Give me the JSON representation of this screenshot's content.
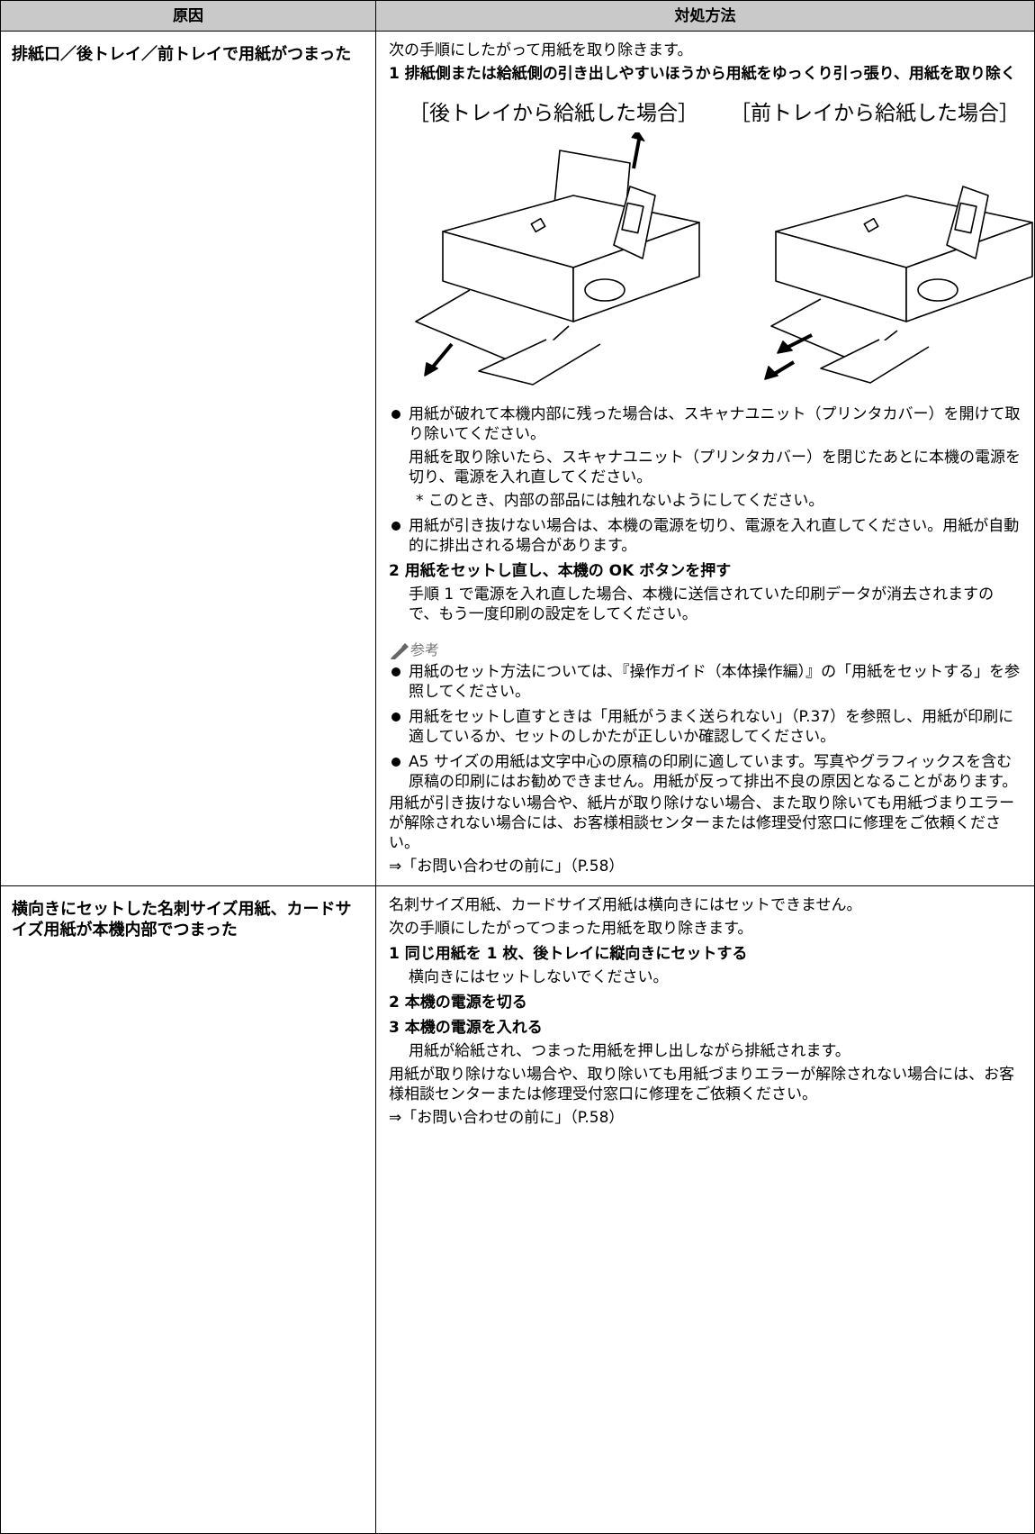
{
  "table": {
    "header": [
      "原因",
      "対処方法"
    ],
    "rows": [
      {
        "cause": "排紙口／後トレイ／前トレイで用紙がつまった",
        "intro": "次の手順にしたがって用紙を取り除きます。",
        "step1": "1 排紙側または給紙側の引き出しやすいほうから用紙をゆっくり引っ張り、用紙を取り除く",
        "captions": [
          "［後トレイから給紙した場合］",
          "［前トレイから給紙した場合］"
        ],
        "bullet1": "用紙が破れて本機内部に残った場合は、スキャナユニット（プリンタカバー）を開けて取り除いてください。",
        "bullet1_detail": "用紙を取り除いたら、スキャナユニット（プリンタカバー）を閉じたあとに本機の電源を切り、電源を入れ直してください。",
        "bullet1_note": "* このとき、内部の部品には触れないようにしてください。",
        "bullet2": "用紙が引き抜けない場合は、本機の電源を切り、電源を入れ直してください。用紙が自動的に排出される場合があります。",
        "step2": "2 用紙をセットし直し、本機の OK ボタンを押す",
        "step2_detail": "手順 1 で電源を入れ直した場合、本機に送信されていた印刷データが消去されますので、もう一度印刷の設定をしてください。",
        "note_title": "参考",
        "notes": [
          "用紙のセット方法については、『操作ガイド（本体操作編）』の「用紙をセットする」を参照してください。",
          "用紙をセットし直すときは「用紙がうまく送られない」（P.37）を参照し、用紙が印刷に適しているか、セットのしかたが正しいか確認してください。",
          "A5 サイズの用紙は文字中心の原稿の印刷に適しています。写真やグラフィックスを含む原稿の印刷にはお勧めできません。用紙が反って排出不良の原因となることがあります。"
        ],
        "closing": "用紙が引き抜けない場合や、紙片が取り除けない場合、また取り除いても用紙づまりエラーが解除されない場合には、お客様相談センターまたは修理受付窓口に修理をご依頼ください。",
        "reference": "⇒「お問い合わせの前に」（P.58）"
      },
      {
        "cause": "横向きにセットした名刺サイズ用紙、カードサイズ用紙が本機内部でつまった",
        "intro1": "名刺サイズ用紙、カードサイズ用紙は横向きにはセットできません。",
        "intro2": "次の手順にしたがってつまった用紙を取り除きます。",
        "step1": "1 同じ用紙を 1 枚、後トレイに縦向きにセットする",
        "step1_detail": "横向きにはセットしないでください。",
        "step2": "2 本機の電源を切る",
        "step3": "3 本機の電源を入れる",
        "step3_detail": "用紙が給紙され、つまった用紙を押し出しながら排紙されます。",
        "closing": "用紙が取り除けない場合や、取り除いても用紙づまりエラーが解除されない場合には、お客様相談センターまたは修理受付窓口に修理をご依頼ください。",
        "reference": "⇒「お問い合わせの前に」（P.58）"
      }
    ]
  }
}
